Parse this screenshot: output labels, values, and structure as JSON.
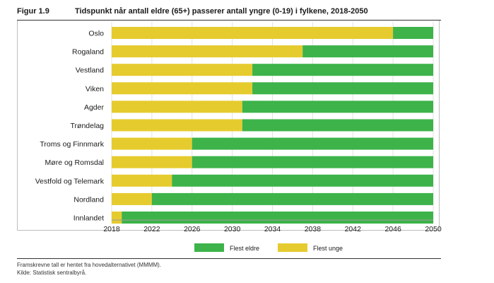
{
  "figure": {
    "number": "Figur 1.9",
    "title": "Tidspunkt når antall eldre (65+) passerer antall yngre (0-19) i fylkene, 2018-2050"
  },
  "colors": {
    "unge": "#e6cb2f",
    "eldre": "#3db34a"
  },
  "chart_data": {
    "type": "bar",
    "orientation": "horizontal",
    "stacked": true,
    "title": "Tidspunkt når antall eldre (65+) passerer antall yngre (0-19) i fylkene, 2018-2050",
    "xlim": [
      2018,
      2050
    ],
    "x_ticks": [
      2018,
      2022,
      2026,
      2030,
      2034,
      2038,
      2042,
      2046,
      2050
    ],
    "grid": true,
    "legend_position": "bottom",
    "categories": [
      "Oslo",
      "Rogaland",
      "Vestland",
      "Viken",
      "Agder",
      "Trøndelag",
      "Troms og Finnmark",
      "Møre og Romsdal",
      "Vestfold og Telemark",
      "Nordland",
      "Innlandet"
    ],
    "crossover_year": [
      2046,
      2037,
      2032,
      2032,
      2031,
      2031,
      2026,
      2026,
      2024,
      2022,
      2019
    ],
    "series": [
      {
        "name": "Flest unge",
        "segment": "before_crossover"
      },
      {
        "name": "Flest eldre",
        "segment": "after_crossover"
      }
    ],
    "legend": [
      "Flest eldre",
      "Flest unge"
    ]
  },
  "notes": {
    "line1": "Framskrevne tall er hentet fra hovedalternativet (MMMM).",
    "line2": "Kilde: Statistisk sentralbyrå."
  }
}
